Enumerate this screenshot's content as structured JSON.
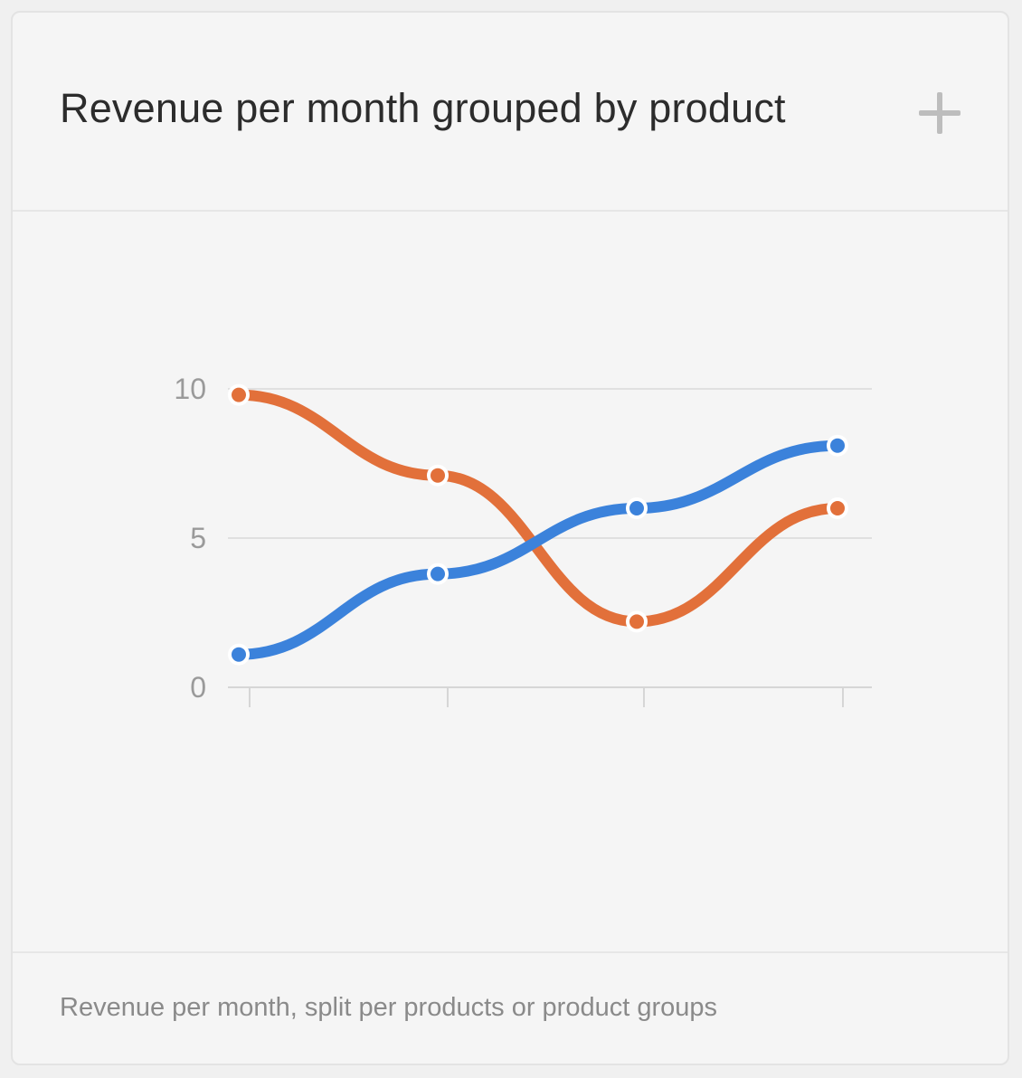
{
  "card": {
    "title": "Revenue per month grouped by product",
    "description": "Revenue per month, split per products or product groups",
    "add_icon": "plus-icon"
  },
  "colors": {
    "series_blue": "#3b82db",
    "series_orange": "#e2703a",
    "grid": "#e0e0e0",
    "axis_label": "#9a9a9a"
  },
  "chart_data": {
    "type": "line",
    "x": [
      1,
      2,
      3,
      4
    ],
    "series": [
      {
        "values": [
          9.8,
          7.1,
          2.2,
          6.0
        ],
        "color": "#e2703a"
      },
      {
        "values": [
          1.1,
          3.8,
          6.0,
          8.1
        ],
        "color": "#3b82db"
      }
    ],
    "yticks": [
      "0",
      "5",
      "10"
    ],
    "ylim": [
      0,
      10
    ],
    "grid": true,
    "smooth": true
  }
}
